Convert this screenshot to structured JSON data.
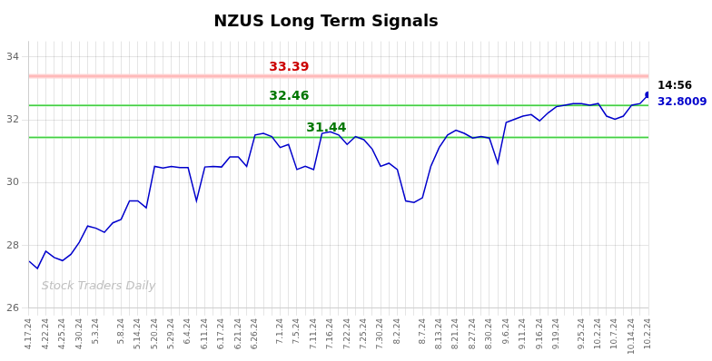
{
  "chart_data": {
    "type": "line",
    "title": "NZUS Long Term Signals",
    "categories": [
      "4.17.24",
      null,
      "4.22.24",
      null,
      "4.25.24",
      null,
      "4.30.24",
      null,
      "5.3.24",
      null,
      null,
      "5.8.24",
      null,
      "5.14.24",
      null,
      "5.20.24",
      null,
      "5.29.24",
      null,
      "6.4.24",
      null,
      "6.11.24",
      null,
      "6.17.24",
      null,
      "6.21.24",
      null,
      "6.26.24",
      null,
      null,
      "7.1.24",
      null,
      "7.5.24",
      null,
      "7.11.24",
      null,
      "7.16.24",
      null,
      "7.22.24",
      null,
      "7.25.24",
      null,
      "7.30.24",
      null,
      "8.2.24",
      null,
      null,
      "8.7.24",
      null,
      "8.13.24",
      null,
      "8.21.24",
      null,
      "8.27.24",
      null,
      "8.30.24",
      null,
      "9.6.24",
      null,
      "9.11.24",
      null,
      "9.16.24",
      null,
      "9.19.24",
      null,
      null,
      "9.25.24",
      null,
      "10.2.24",
      null,
      "10.7.24",
      null,
      "10.14.24",
      null,
      "10.2.24"
    ],
    "values": [
      27.5,
      27.27,
      27.82,
      27.62,
      27.52,
      27.72,
      28.1,
      28.62,
      28.55,
      28.42,
      28.72,
      28.83,
      29.42,
      29.42,
      29.2,
      30.52,
      30.47,
      30.52,
      30.48,
      30.48,
      29.42,
      30.5,
      30.52,
      30.5,
      30.82,
      30.82,
      30.52,
      31.52,
      31.57,
      31.47,
      31.12,
      31.22,
      30.42,
      30.52,
      30.42,
      31.57,
      31.62,
      31.52,
      31.22,
      31.47,
      31.37,
      31.07,
      30.52,
      30.62,
      30.42,
      29.42,
      29.37,
      29.52,
      30.52,
      31.12,
      31.52,
      31.67,
      31.57,
      31.42,
      31.47,
      31.42,
      30.62,
      31.92,
      32.02,
      32.12,
      32.17,
      31.97,
      32.22,
      32.42,
      32.47,
      32.52,
      32.52,
      32.47,
      32.52,
      32.12,
      32.02,
      32.12,
      32.47,
      32.52,
      32.8
    ],
    "color": "#0000cc",
    "ylim": [
      26.0,
      34.5
    ],
    "yticks": [
      26,
      28,
      30,
      32,
      34
    ],
    "grid": true,
    "annotations": [
      {
        "text": "33.39",
        "y": 33.39,
        "color": "#cc0000",
        "line_color": "#ffb3b3",
        "fill_color": "#ffcccc"
      },
      {
        "text": "32.46",
        "y": 32.46,
        "color": "#007700",
        "line_color": "#44cc44",
        "fill_color": "#ccffcc"
      },
      {
        "text": "31.44",
        "y": 31.44,
        "color": "#007700",
        "line_color": "#44cc44",
        "fill_color": "#ccffcc"
      }
    ],
    "last_labels": [
      {
        "text": "14:56",
        "color": "#000000"
      },
      {
        "text": "32.8009",
        "color": "#0000cc"
      }
    ],
    "watermark": {
      "text": "Stock Traders Daily",
      "color": "#b0b0b0"
    }
  }
}
